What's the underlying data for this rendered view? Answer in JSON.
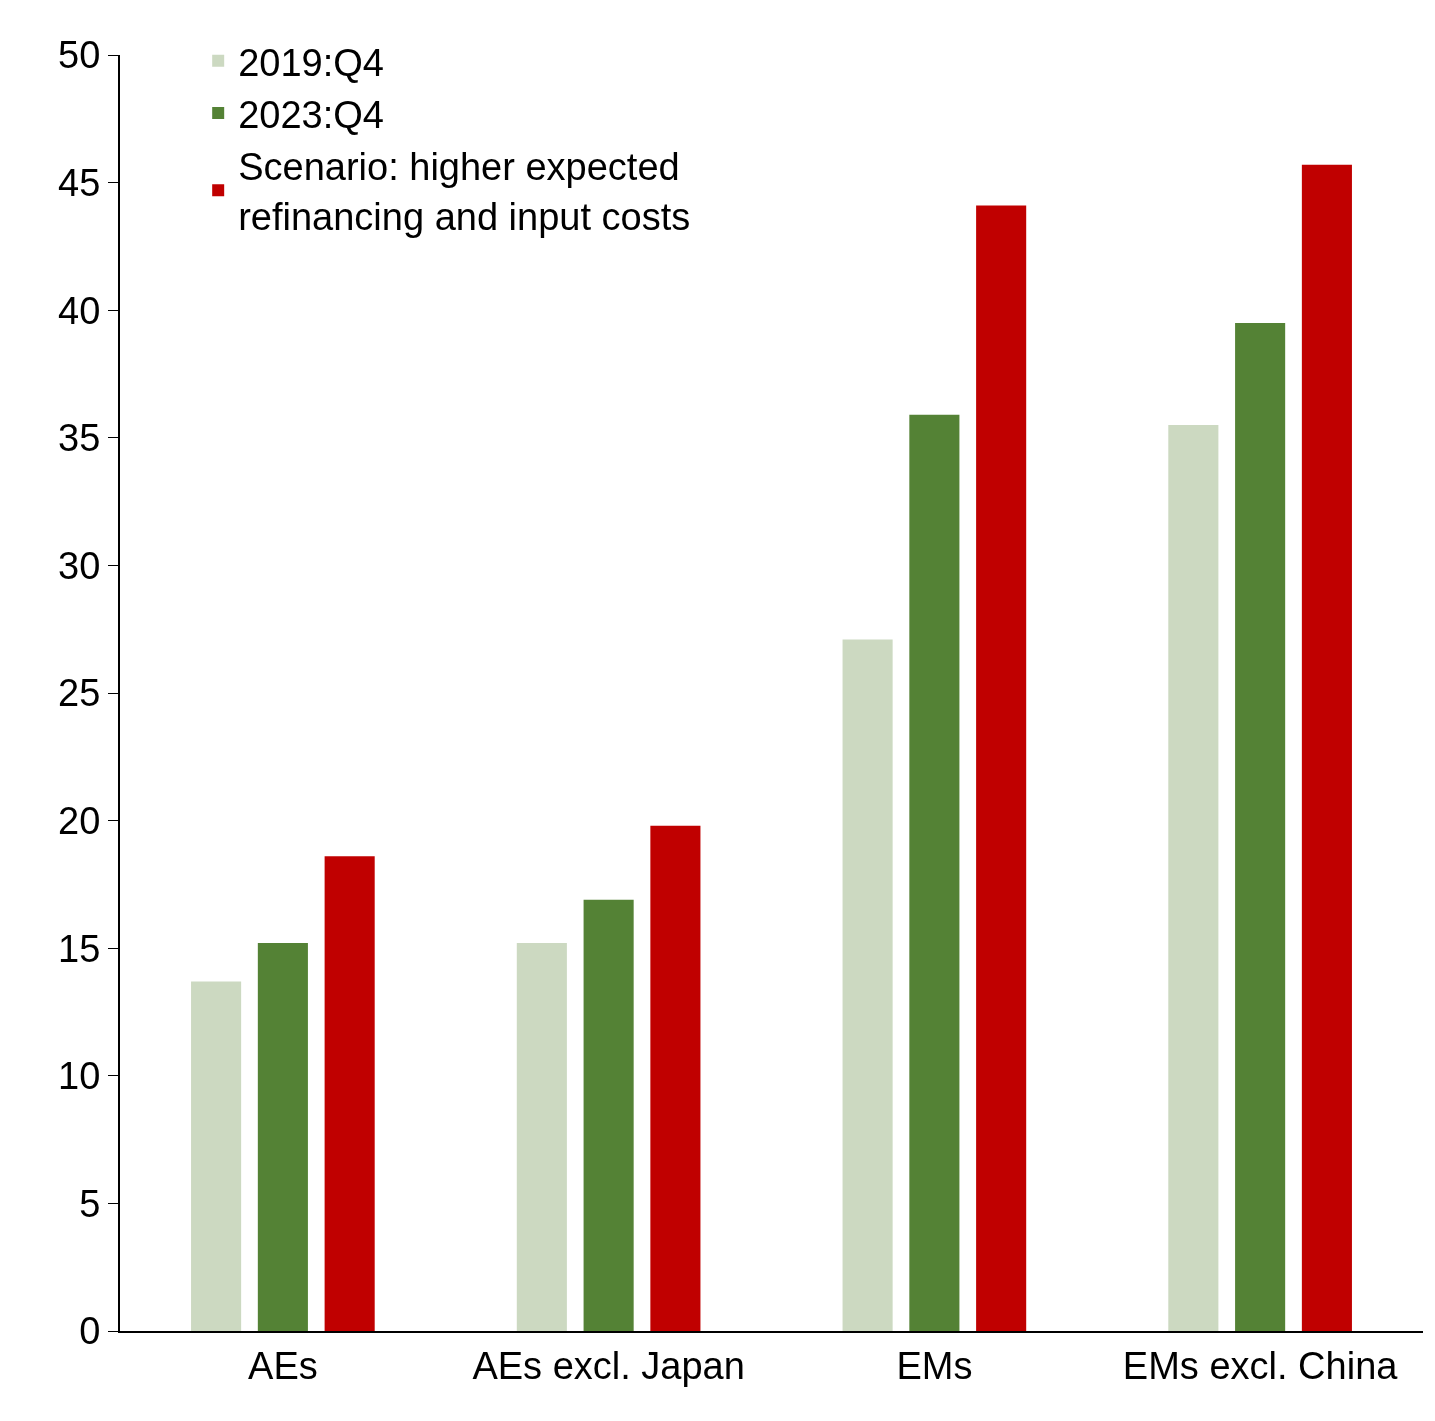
{
  "chart_data": {
    "type": "bar",
    "categories": [
      "AEs",
      "AEs excl. Japan",
      "EMs",
      "EMs excl. China"
    ],
    "series": [
      {
        "name": "2019:Q4",
        "color": "#ccd9c1",
        "values": [
          13.7,
          15.2,
          27.1,
          35.5
        ]
      },
      {
        "name": "2023:Q4",
        "color": "#548235",
        "values": [
          15.2,
          16.9,
          35.9,
          39.5
        ]
      },
      {
        "name": "Scenario: higher expected refinancing and input costs",
        "color": "#c00000",
        "values": [
          18.6,
          19.8,
          44.1,
          45.7
        ]
      }
    ],
    "ylim": [
      0,
      50
    ],
    "yticks": [
      0,
      5,
      10,
      15,
      20,
      25,
      30,
      35,
      40,
      45,
      50
    ],
    "legend": "top left"
  }
}
